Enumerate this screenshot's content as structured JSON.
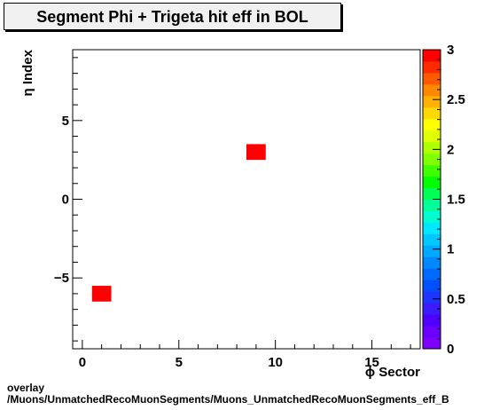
{
  "title": "Segment Phi + Trigeta hit eff in BOL",
  "footer": {
    "line1": "overlay",
    "line2": "/Muons/UnmatchedRecoMuonSegments/Muons_UnmatchedRecoMuonSegments_eff_B"
  },
  "chart_data": {
    "type": "heatmap",
    "title": "Segment Phi + Trigeta hit eff in BOL",
    "xlabel": "ϕ Sector",
    "ylabel": "η Index",
    "xlim": [
      -0.5,
      17.5
    ],
    "ylim": [
      -9.5,
      9.5
    ],
    "xticks": [
      0,
      5,
      10,
      15
    ],
    "yticks": [
      -5,
      0,
      5
    ],
    "zlim": [
      0,
      3
    ],
    "zticks": [
      0,
      0.5,
      1,
      1.5,
      2,
      2.5,
      3
    ],
    "cells": [
      {
        "x": 1,
        "y": -6,
        "value": 3
      },
      {
        "x": 9,
        "y": 3,
        "value": 3
      }
    ],
    "colorbar_colors": [
      "#7f00ff",
      "#6a00ff",
      "#5000ff",
      "#3a1cff",
      "#1f35ff",
      "#0050ff",
      "#006aff",
      "#0088ff",
      "#00a8ff",
      "#00c8ff",
      "#00e8ff",
      "#00ffd0",
      "#00ff99",
      "#00ff55",
      "#00ff00",
      "#40ff00",
      "#80ff00",
      "#b0ff00",
      "#e0ff00",
      "#ffff00",
      "#ffd800",
      "#ffb000",
      "#ff8800",
      "#ff5a00",
      "#ff2a00",
      "#ff0000"
    ]
  }
}
